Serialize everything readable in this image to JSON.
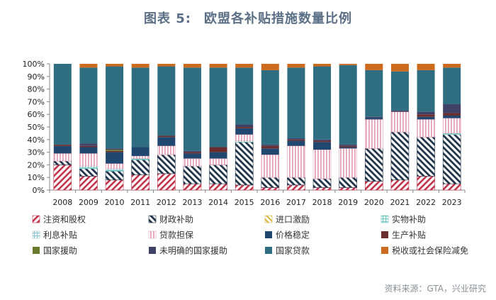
{
  "title_prefix": "图表 5:",
  "title_main": "欧盟各补贴措施数量比例",
  "source": "资料来源：GTA，兴业研究",
  "chart_data": {
    "type": "bar",
    "stacked": true,
    "categories": [
      "2008",
      "2009",
      "2010",
      "2011",
      "2012",
      "2013",
      "2014",
      "2015",
      "2016",
      "2017",
      "2018",
      "2019",
      "2020",
      "2021",
      "2022",
      "2023"
    ],
    "ylim": [
      0,
      100
    ],
    "yticks": [
      "0%",
      "10%",
      "20%",
      "30%",
      "40%",
      "50%",
      "60%",
      "70%",
      "80%",
      "90%",
      "100%"
    ],
    "legend_position": "bottom",
    "series": [
      {
        "name": "注资和股权",
        "color": "#c0334a",
        "pattern": "diag-red",
        "values": [
          20,
          11,
          8,
          12,
          13,
          5,
          5,
          4,
          2,
          4,
          2,
          2,
          7,
          8,
          11,
          5
        ]
      },
      {
        "name": "财政补助",
        "color": "#1f3449",
        "pattern": "diag-navy",
        "values": [
          3,
          6,
          7,
          12,
          15,
          14,
          15,
          34,
          8,
          6,
          7,
          8,
          26,
          38,
          31,
          39
        ]
      },
      {
        "name": "进口激励",
        "color": "#d7b63a",
        "pattern": "diag-yellow",
        "values": [
          0,
          0,
          0,
          0,
          0,
          0,
          0,
          0,
          0,
          0,
          0,
          0,
          0,
          0,
          0,
          0
        ]
      },
      {
        "name": "实物补助",
        "color": "#74c9c3",
        "pattern": "grid-teal",
        "values": [
          0,
          2,
          1,
          1,
          0,
          0,
          0,
          1,
          0,
          0,
          0,
          0,
          0,
          0,
          0,
          1
        ]
      },
      {
        "name": "利息补贴",
        "color": "#8fc4d6",
        "pattern": "grid-blue",
        "values": [
          0,
          0,
          1,
          0,
          0,
          0,
          0,
          0,
          0,
          0,
          0,
          0,
          0,
          0,
          0,
          0
        ]
      },
      {
        "name": "贷款担保",
        "color": "#e6a3b8",
        "pattern": "vert-pink",
        "values": [
          6,
          10,
          4,
          2,
          7,
          6,
          5,
          5,
          18,
          25,
          23,
          23,
          23,
          16,
          14,
          12
        ]
      },
      {
        "name": "价格稳定",
        "color": "#1f4770",
        "pattern": "",
        "values": [
          6,
          5,
          9,
          7,
          7,
          4,
          5,
          5,
          5,
          4,
          6,
          1,
          1,
          0,
          2,
          2
        ]
      },
      {
        "name": "生产补贴",
        "color": "#6b2d2d",
        "pattern": "",
        "values": [
          1,
          1,
          1,
          0,
          1,
          1,
          4,
          1,
          2,
          1,
          1,
          1,
          0,
          0,
          2,
          2
        ]
      },
      {
        "name": "国家援助",
        "color": "#6a7a2c",
        "pattern": "",
        "values": [
          0,
          0,
          1,
          0,
          0,
          0,
          0,
          0,
          0,
          0,
          0,
          0,
          0,
          0,
          0,
          0
        ]
      },
      {
        "name": "未明确的国家援助",
        "color": "#3f4166",
        "pattern": "",
        "values": [
          0,
          2,
          1,
          0,
          0,
          1,
          0,
          2,
          1,
          1,
          1,
          1,
          1,
          1,
          2,
          7
        ]
      },
      {
        "name": "国家贷款",
        "color": "#2e6e80",
        "pattern": "",
        "values": [
          64,
          60,
          65,
          63,
          55,
          66,
          63,
          45,
          59,
          56,
          58,
          63,
          37,
          31,
          33,
          29
        ]
      },
      {
        "name": "税收或社会保险减免",
        "color": "#cc6a1e",
        "pattern": "",
        "values": [
          0,
          3,
          2,
          3,
          2,
          3,
          3,
          3,
          5,
          3,
          2,
          1,
          5,
          6,
          5,
          3
        ]
      }
    ]
  }
}
